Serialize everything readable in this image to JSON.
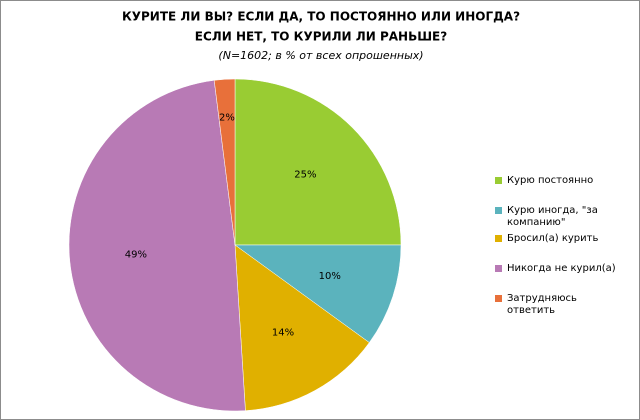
{
  "chart_data": {
    "type": "pie",
    "title": [
      "КУРИТЕ ЛИ ВЫ? ЕСЛИ ДА, ТО ПОСТОЯННО  ИЛИ ИНОГДА?",
      "ЕСЛИ НЕТ, ТО КУРИЛИ  ЛИ РАНЬШЕ?"
    ],
    "subtitle": "(N=1602; в % от всех опрошенных)",
    "categories": [
      "Курю постоянно",
      "Курю иногда, \"за компанию\"",
      "Бросил(а) курить",
      "Никогда не курил(а)",
      "Затрудняюсь ответить"
    ],
    "values": [
      25,
      10,
      14,
      49,
      2
    ],
    "value_labels": [
      "25%",
      "10%",
      "14%",
      "49%",
      "2%"
    ],
    "colors": [
      "#99cc33",
      "#5bb3bd",
      "#e0b000",
      "#b87ab5",
      "#e8703a"
    ],
    "legend": "right"
  }
}
